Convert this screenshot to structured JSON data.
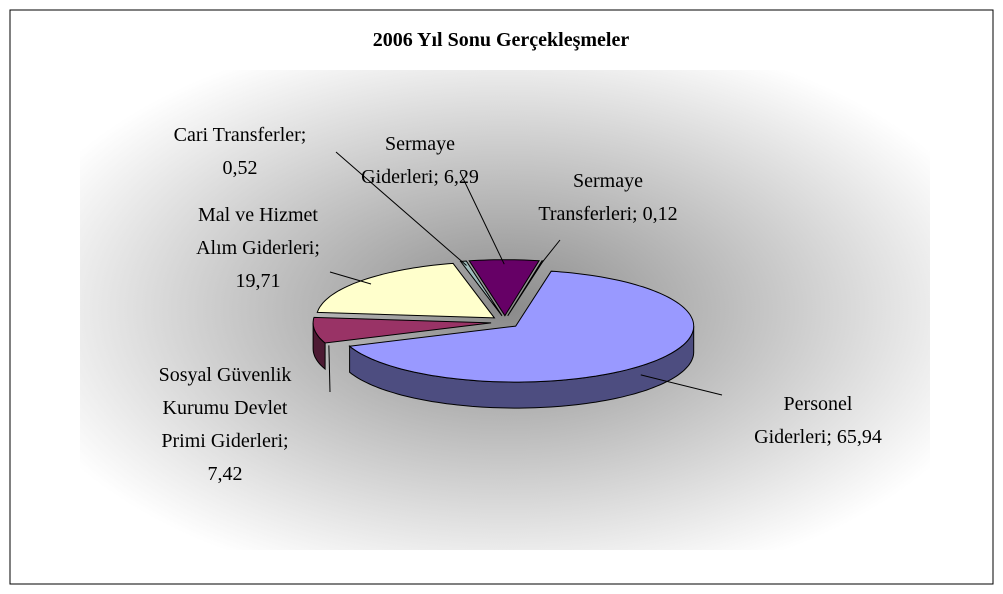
{
  "chart_data": {
    "type": "pie3d",
    "title": "2006 Yıl Sonu Gerçekleşmeler",
    "values": [
      65.94,
      7.42,
      19.71,
      0.52,
      6.29,
      0.12
    ],
    "value_labels": [
      "Personel Giderleri; 65,94",
      "Sosyal Güvenlik Kurumu Devlet Primi Giderleri; 7,42",
      "Mal ve Hizmet Alım Giderleri; 19,71",
      "Cari Transferler; 0,52",
      "Sermaye Giderleri; 6,29",
      "Sermaye Transferleri; 0,12"
    ],
    "colors": [
      "#9999ff",
      "#993366",
      "#ffffcc",
      "#9fbcbc",
      "#660066",
      "#ffffff"
    ]
  }
}
